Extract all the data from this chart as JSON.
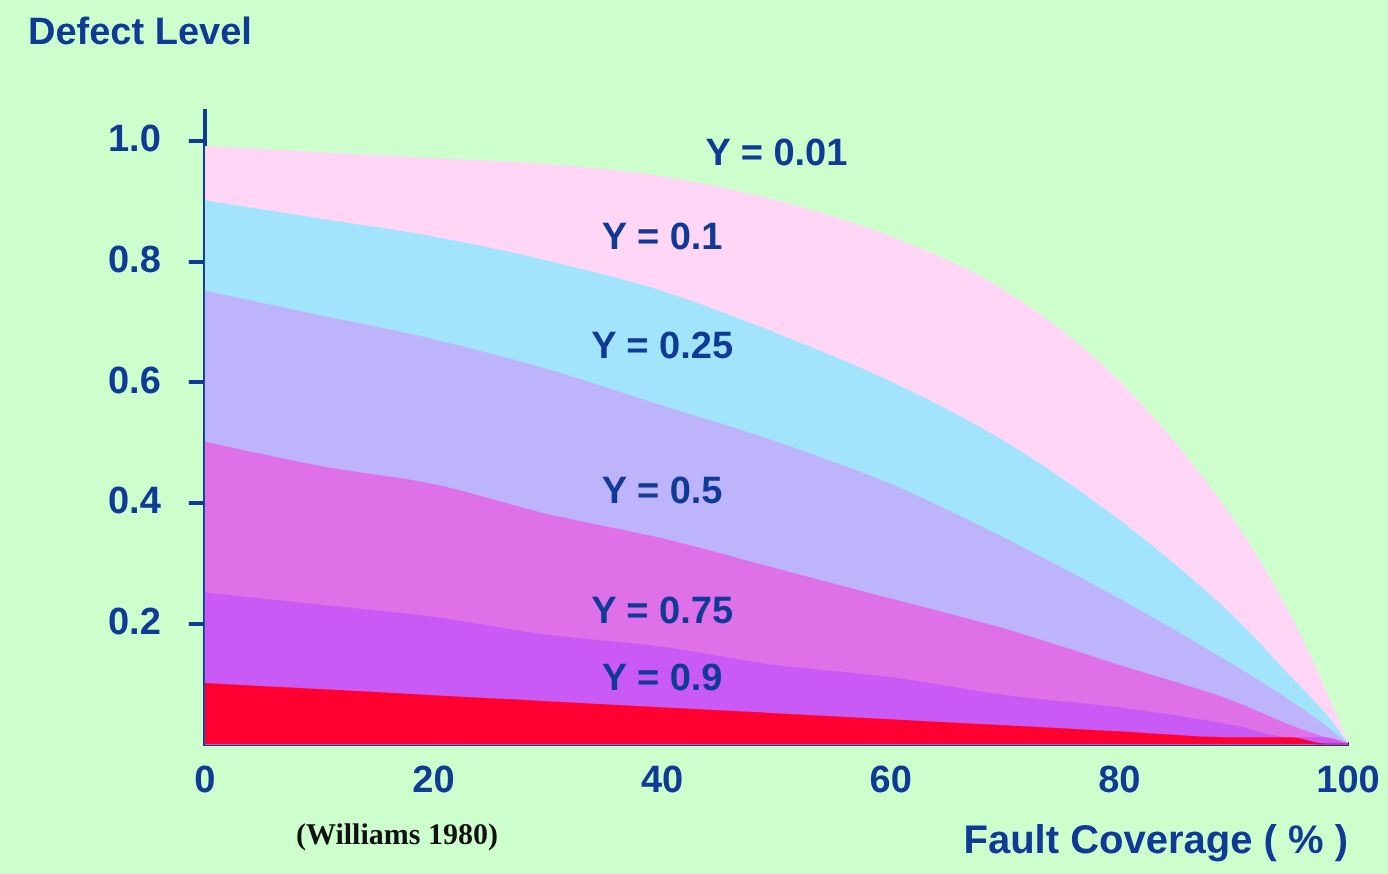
{
  "chart_data": {
    "type": "area",
    "ylabel": "Defect Level",
    "xlabel": "Fault Coverage ( % )",
    "annotations": [
      "(Williams 1980)"
    ],
    "x": [
      0,
      10,
      20,
      30,
      40,
      50,
      60,
      70,
      80,
      90,
      95,
      98,
      100
    ],
    "series": [
      {
        "name": "Y = 0.01",
        "color": "#ffd6f6",
        "values": [
          0.99,
          0.98,
          0.97,
          0.96,
          0.94,
          0.9,
          0.84,
          0.75,
          0.6,
          0.37,
          0.21,
          0.09,
          0
        ]
      },
      {
        "name": "Y = 0.1",
        "color": "#a3e4fd",
        "values": [
          0.9,
          0.87,
          0.84,
          0.8,
          0.75,
          0.68,
          0.6,
          0.5,
          0.37,
          0.21,
          0.11,
          0.05,
          0
        ]
      },
      {
        "name": "Y = 0.25",
        "color": "#bdb4fb",
        "values": [
          0.75,
          0.71,
          0.67,
          0.62,
          0.56,
          0.5,
          0.43,
          0.34,
          0.24,
          0.13,
          0.07,
          0.03,
          0
        ]
      },
      {
        "name": "Y = 0.5",
        "color": "#de70e8",
        "values": [
          0.5,
          0.46,
          0.43,
          0.38,
          0.34,
          0.29,
          0.24,
          0.19,
          0.13,
          0.07,
          0.03,
          0.01,
          0
        ]
      },
      {
        "name": "Y = 0.75",
        "color": "#c95af5",
        "values": [
          0.25,
          0.23,
          0.21,
          0.18,
          0.16,
          0.13,
          0.11,
          0.08,
          0.06,
          0.03,
          0.01,
          0.01,
          0
        ]
      },
      {
        "name": "Y = 0.9",
        "color": "#ff0030",
        "values": [
          0.1,
          0.09,
          0.08,
          0.07,
          0.06,
          0.05,
          0.04,
          0.03,
          0.02,
          0.01,
          0.01,
          0,
          0
        ]
      }
    ],
    "xlim": [
      0,
      100
    ],
    "xticks": [
      0,
      20,
      40,
      60,
      80,
      100
    ],
    "ylim": [
      0,
      1.05
    ],
    "yticks": [
      0.2,
      0.4,
      0.6,
      0.8,
      {
        "value": 1,
        "label": "1.0"
      }
    ],
    "grid": false,
    "legend": false
  }
}
